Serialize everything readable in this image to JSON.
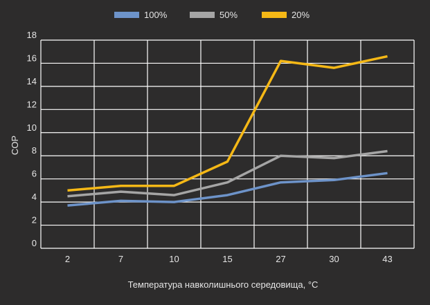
{
  "chart_data": {
    "type": "line",
    "categories": [
      "2",
      "7",
      "10",
      "15",
      "27",
      "30",
      "43"
    ],
    "series": [
      {
        "name": "100%",
        "color": "#6d93c9",
        "values": [
          3.7,
          4.1,
          4.0,
          4.6,
          5.7,
          5.9,
          6.5
        ]
      },
      {
        "name": "50%",
        "color": "#a5a5a5",
        "values": [
          4.5,
          4.9,
          4.6,
          5.7,
          8.0,
          7.8,
          8.4
        ]
      },
      {
        "name": "20%",
        "color": "#f5b816",
        "values": [
          5.0,
          5.4,
          5.4,
          7.5,
          16.2,
          15.6,
          16.6
        ]
      }
    ],
    "xlabel": "Температура навколишнього середовища, °C",
    "ylabel": "COP",
    "ylim": [
      0,
      18
    ],
    "yticks": [
      0,
      2,
      4,
      6,
      8,
      10,
      12,
      14,
      16,
      18
    ],
    "grid": true,
    "legend_position": "top"
  },
  "colors": {
    "background": "#2d2c2c",
    "grid": "#ffffff",
    "text": "#e6e6e6"
  }
}
